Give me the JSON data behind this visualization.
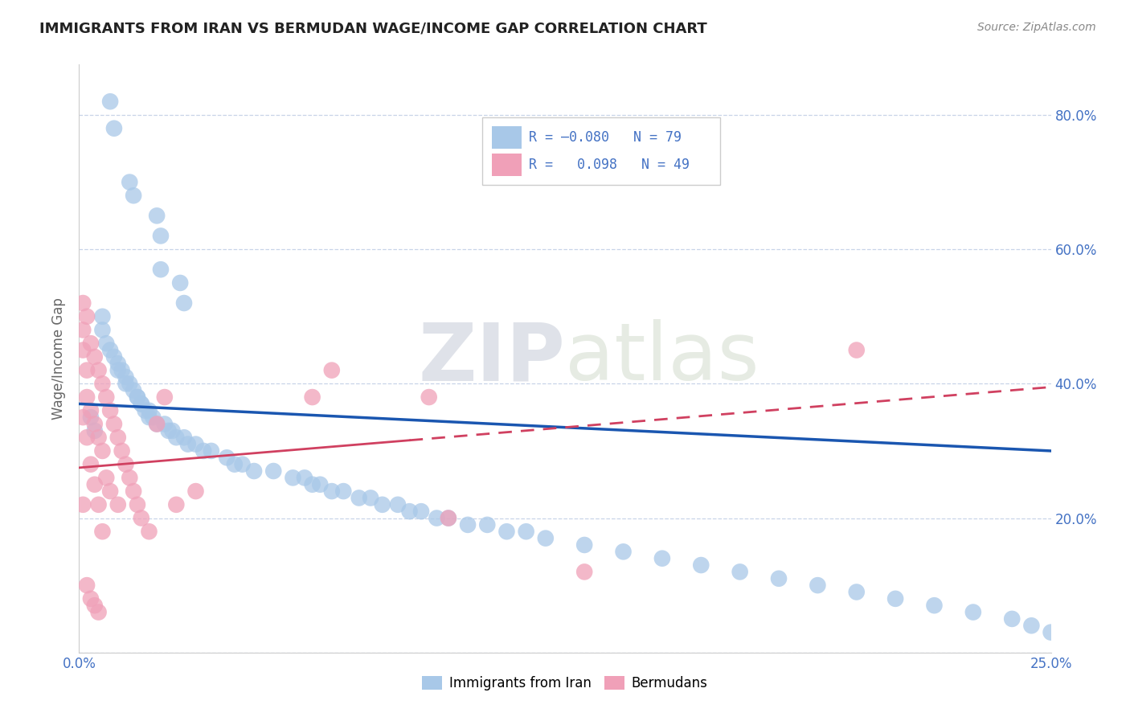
{
  "title": "IMMIGRANTS FROM IRAN VS BERMUDAN WAGE/INCOME GAP CORRELATION CHART",
  "source": "Source: ZipAtlas.com",
  "ylabel": "Wage/Income Gap",
  "x_series1_label": "Immigrants from Iran",
  "x_series2_label": "Bermudans",
  "R1": -0.08,
  "N1": 79,
  "R2": 0.098,
  "N2": 49,
  "color1": "#a8c8e8",
  "color2": "#f0a0b8",
  "line1_color": "#1a56b0",
  "line2_color": "#d04060",
  "xlim": [
    0.0,
    0.25
  ],
  "ylim": [
    0.0,
    0.875
  ],
  "xticks": [
    0.0,
    0.05,
    0.1,
    0.15,
    0.2,
    0.25
  ],
  "yticks": [
    0.0,
    0.2,
    0.4,
    0.6,
    0.8
  ],
  "scatter1_x": [
    0.008,
    0.009,
    0.013,
    0.014,
    0.02,
    0.021,
    0.021,
    0.026,
    0.027,
    0.006,
    0.006,
    0.007,
    0.008,
    0.009,
    0.01,
    0.01,
    0.011,
    0.012,
    0.012,
    0.013,
    0.014,
    0.015,
    0.015,
    0.016,
    0.016,
    0.017,
    0.018,
    0.018,
    0.019,
    0.02,
    0.022,
    0.023,
    0.024,
    0.025,
    0.027,
    0.028,
    0.03,
    0.032,
    0.034,
    0.038,
    0.04,
    0.042,
    0.045,
    0.05,
    0.055,
    0.058,
    0.06,
    0.062,
    0.065,
    0.068,
    0.072,
    0.075,
    0.078,
    0.082,
    0.085,
    0.088,
    0.092,
    0.095,
    0.1,
    0.105,
    0.11,
    0.115,
    0.12,
    0.13,
    0.14,
    0.15,
    0.16,
    0.17,
    0.18,
    0.19,
    0.2,
    0.21,
    0.22,
    0.23,
    0.24,
    0.245,
    0.25,
    0.003,
    0.004
  ],
  "scatter1_y": [
    0.82,
    0.78,
    0.7,
    0.68,
    0.65,
    0.62,
    0.57,
    0.55,
    0.52,
    0.5,
    0.48,
    0.46,
    0.45,
    0.44,
    0.43,
    0.42,
    0.42,
    0.41,
    0.4,
    0.4,
    0.39,
    0.38,
    0.38,
    0.37,
    0.37,
    0.36,
    0.36,
    0.35,
    0.35,
    0.34,
    0.34,
    0.33,
    0.33,
    0.32,
    0.32,
    0.31,
    0.31,
    0.3,
    0.3,
    0.29,
    0.28,
    0.28,
    0.27,
    0.27,
    0.26,
    0.26,
    0.25,
    0.25,
    0.24,
    0.24,
    0.23,
    0.23,
    0.22,
    0.22,
    0.21,
    0.21,
    0.2,
    0.2,
    0.19,
    0.19,
    0.18,
    0.18,
    0.17,
    0.16,
    0.15,
    0.14,
    0.13,
    0.12,
    0.11,
    0.1,
    0.09,
    0.08,
    0.07,
    0.06,
    0.05,
    0.04,
    0.03,
    0.35,
    0.33
  ],
  "scatter2_x": [
    0.001,
    0.001,
    0.001,
    0.001,
    0.001,
    0.002,
    0.002,
    0.002,
    0.002,
    0.002,
    0.003,
    0.003,
    0.003,
    0.003,
    0.004,
    0.004,
    0.004,
    0.004,
    0.005,
    0.005,
    0.005,
    0.005,
    0.006,
    0.006,
    0.006,
    0.007,
    0.007,
    0.008,
    0.008,
    0.009,
    0.01,
    0.01,
    0.011,
    0.012,
    0.013,
    0.014,
    0.015,
    0.016,
    0.018,
    0.02,
    0.022,
    0.025,
    0.03,
    0.06,
    0.065,
    0.09,
    0.095,
    0.13,
    0.2
  ],
  "scatter2_y": [
    0.52,
    0.48,
    0.45,
    0.35,
    0.22,
    0.5,
    0.42,
    0.38,
    0.32,
    0.1,
    0.46,
    0.36,
    0.28,
    0.08,
    0.44,
    0.34,
    0.25,
    0.07,
    0.42,
    0.32,
    0.22,
    0.06,
    0.4,
    0.3,
    0.18,
    0.38,
    0.26,
    0.36,
    0.24,
    0.34,
    0.32,
    0.22,
    0.3,
    0.28,
    0.26,
    0.24,
    0.22,
    0.2,
    0.18,
    0.34,
    0.38,
    0.22,
    0.24,
    0.38,
    0.42,
    0.38,
    0.2,
    0.12,
    0.45
  ],
  "line1_y0": 0.37,
  "line1_y1": 0.3,
  "line2_y0": 0.275,
  "line2_y1": 0.395,
  "watermark_zip": "ZIP",
  "watermark_atlas": "atlas",
  "background_color": "#ffffff",
  "grid_color": "#c8d4e8",
  "title_color": "#222222",
  "axis_color": "#4472c4",
  "legend_edge_color": "#cccccc"
}
